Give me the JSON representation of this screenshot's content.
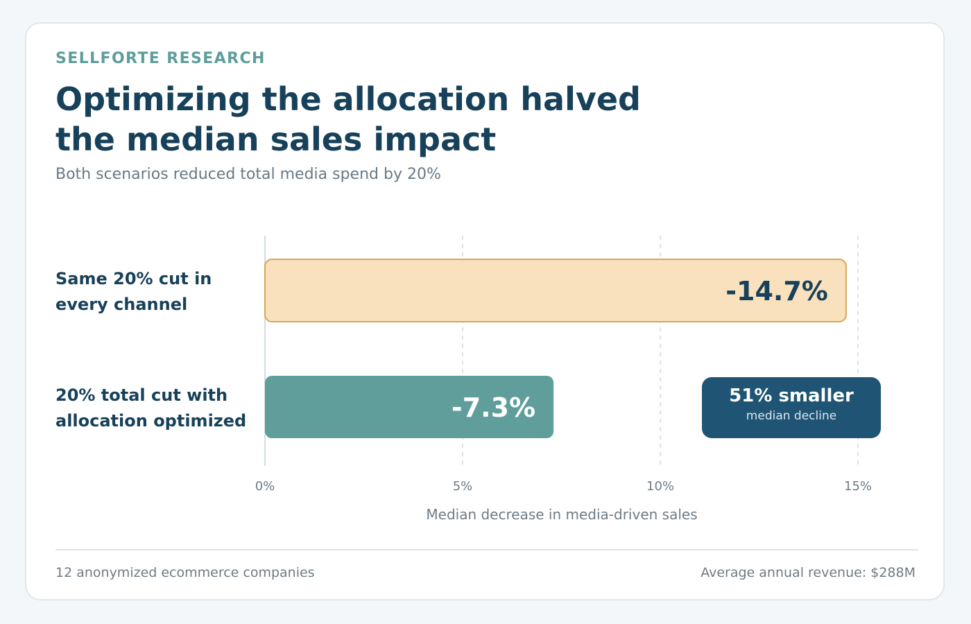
{
  "header": {
    "eyebrow": "SELLFORTE RESEARCH",
    "title": "Optimizing the allocation halved the median sales impact",
    "subtitle": "Both scenarios reduced total media spend by 20%"
  },
  "chart_data": {
    "type": "bar",
    "orientation": "horizontal",
    "categories": [
      "Same 20% cut in every channel",
      "20% total cut with allocation optimized"
    ],
    "values": [
      14.7,
      7.3
    ],
    "data_labels": [
      "-14.7%",
      "-7.3%"
    ],
    "xlabel": "Median decrease in media-driven sales",
    "xlim": [
      0,
      15
    ],
    "xticks": [
      0,
      5,
      10,
      15
    ],
    "xtick_labels": [
      "0%",
      "5%",
      "10%",
      "15%"
    ],
    "grid": "vertical dashed",
    "colors": {
      "bar_1_fill": "#f9e1be",
      "bar_1_stroke": "#d7a656",
      "bar_2_fill": "#5f9e9b",
      "label_dark": "#17415a",
      "label_light": "#ffffff"
    },
    "annotation": {
      "main": "51% smaller",
      "sub": "median decline"
    }
  },
  "footer": {
    "left": "12 anonymized ecommerce companies",
    "right": "Average annual revenue: $288M"
  }
}
